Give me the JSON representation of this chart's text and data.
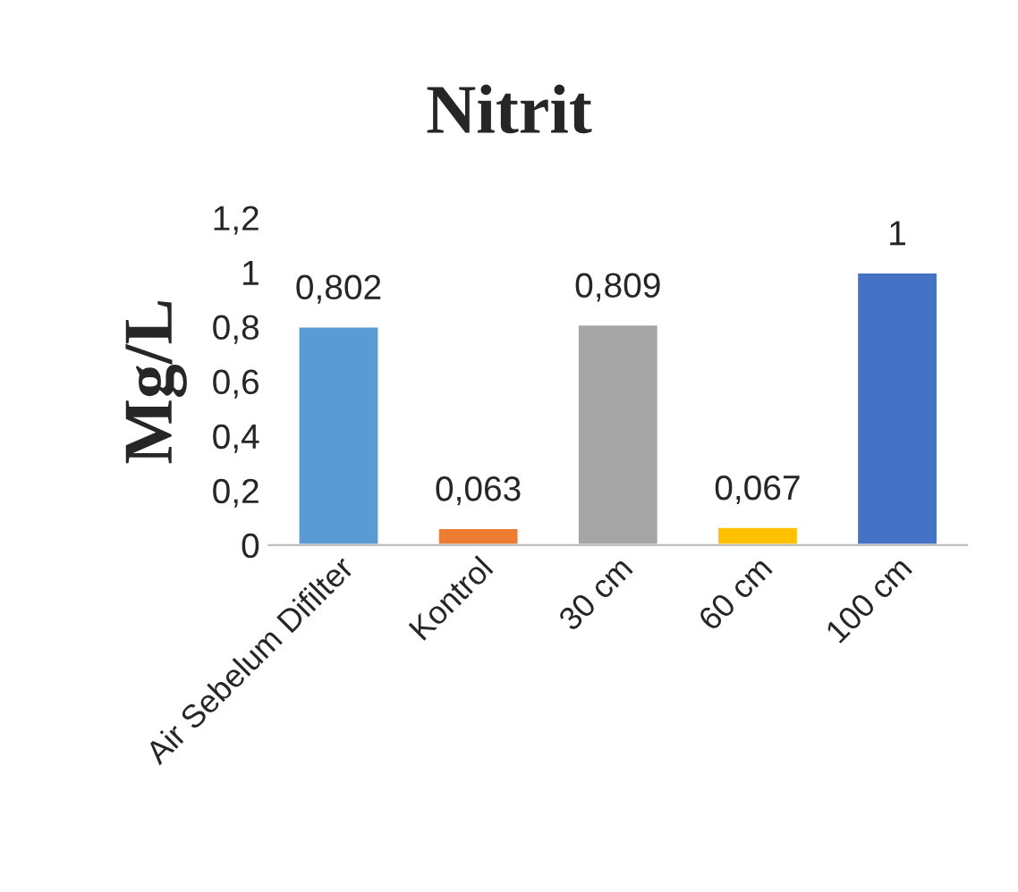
{
  "chart_data": {
    "type": "bar",
    "title": "Nitrit",
    "ylabel": "Mg/L",
    "categories": [
      "Air Sebelum Difilter",
      "Kontrol",
      "30 cm",
      "60 cm",
      "100 cm"
    ],
    "values": [
      0.802,
      0.063,
      0.809,
      0.067,
      1
    ],
    "colors": [
      "#5b9bd5",
      "#ed7d31",
      "#a5a5a5",
      "#ffc000",
      "#4472c4"
    ],
    "value_labels": [
      "0,802",
      "0,063",
      "0,809",
      "0,067",
      "1"
    ],
    "ylim": [
      0,
      1.2
    ],
    "yticks": [
      {
        "value": 0,
        "label": "0"
      },
      {
        "value": 0.2,
        "label": "0,2"
      },
      {
        "value": 0.4,
        "label": "0,4"
      },
      {
        "value": 0.6,
        "label": "0,6"
      },
      {
        "value": 0.8,
        "label": "0,8"
      },
      {
        "value": 1,
        "label": "1"
      },
      {
        "value": 1.2,
        "label": "1,2"
      }
    ],
    "grid": false,
    "legend": false
  }
}
